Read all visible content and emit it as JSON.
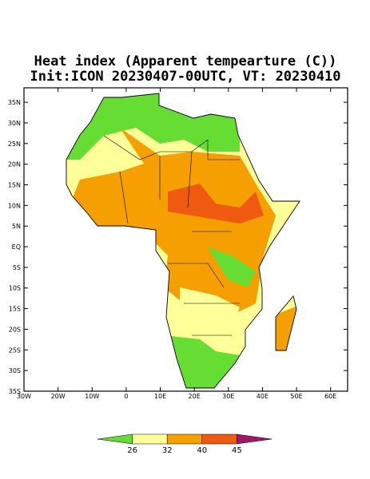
{
  "title": "Heat index (Apparent tempearture (C))",
  "subtitle": "Init:ICON 20230407-00UTC, VT: 20230410",
  "map": {
    "xlim": [
      -30,
      65
    ],
    "ylim": [
      -35,
      38.5
    ],
    "xticks": [
      {
        "value": -30,
        "label": "30W"
      },
      {
        "value": -20,
        "label": "20W"
      },
      {
        "value": -10,
        "label": "10W"
      },
      0,
      {
        "value": 10,
        "label": "10E"
      },
      {
        "value": 20,
        "label": "20E"
      },
      {
        "value": 30,
        "label": "30E"
      },
      {
        "value": 40,
        "label": "40E"
      },
      {
        "value": 50,
        "label": "50E"
      },
      {
        "value": 60,
        "label": "60E"
      }
    ],
    "yticks": [
      {
        "value": 35,
        "label": "35N"
      },
      {
        "value": 30,
        "label": "30N"
      },
      {
        "value": 25,
        "label": "25N"
      },
      {
        "value": 20,
        "label": "20N"
      },
      {
        "value": 15,
        "label": "15N"
      },
      {
        "value": 10,
        "label": "10N"
      },
      {
        "value": 5,
        "label": "5N"
      },
      {
        "value": 0,
        "label": "EQ"
      },
      {
        "value": -5,
        "label": "5S"
      },
      {
        "value": -10,
        "label": "10S"
      },
      {
        "value": -15,
        "label": "15S"
      },
      {
        "value": -20,
        "label": "20S"
      },
      {
        "value": -25,
        "label": "25S"
      },
      {
        "value": -30,
        "label": "30S"
      },
      {
        "value": -35,
        "label": "35S"
      }
    ],
    "colorbar": {
      "levels": [
        26,
        32,
        40,
        45
      ],
      "colors": [
        "#66dd33",
        "#ffff99",
        "#f5a000",
        "#f05a10",
        "#a0186a"
      ]
    }
  }
}
